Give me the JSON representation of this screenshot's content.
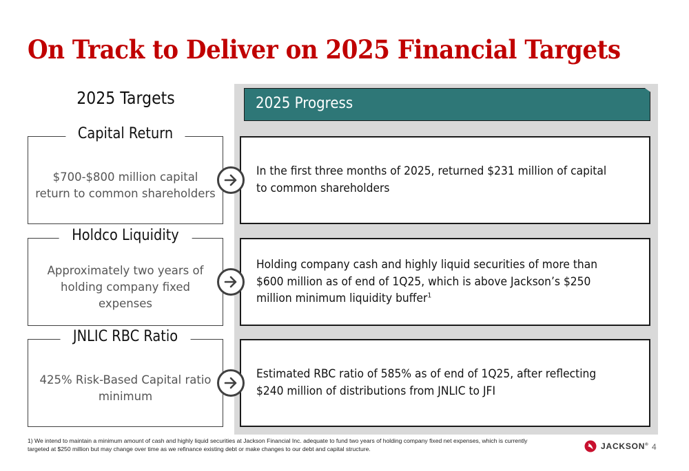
{
  "title": "On Track to Deliver on 2025 Financial Targets",
  "targets_heading": "2025 Targets",
  "progress_heading": "2025 Progress",
  "rows": [
    {
      "label": "Capital Return",
      "description": "$700-$800 million capital return to common shareholders",
      "progress": "In the first three months of 2025, returned $231 million of capital to common shareholders"
    },
    {
      "label": "Holdco Liquidity",
      "description": "Approximately two years of holding company fixed expenses",
      "progress": "Holding company cash and highly liquid securities of more than $600 million as of end of 1Q25, which is above Jackson’s $250 million minimum liquidity buffer",
      "footnote_marker": "1"
    },
    {
      "label": "JNLIC RBC Ratio",
      "description": "425% Risk-Based Capital ratio minimum",
      "progress": "Estimated RBC ratio of 585% as of end of 1Q25, after reflecting $240 million of distributions from JNLIC to JFI"
    }
  ],
  "footnote": "1) We intend to maintain a minimum amount of cash and highly liquid securities at Jackson Financial Inc. adequate to fund two years of holding company fixed net expenses, which is currently targeted at $250 million but may change over time as we refinance existing debt or make changes to our debt and capital structure.",
  "logo": {
    "text": "JACKSON",
    "mark": "®",
    "icon": "jackson-logo-icon"
  },
  "page_number": "4",
  "colors": {
    "title": "#c00000",
    "banner": "#2e7777",
    "panel": "#d9d9d9",
    "logo_red": "#c8102e"
  }
}
